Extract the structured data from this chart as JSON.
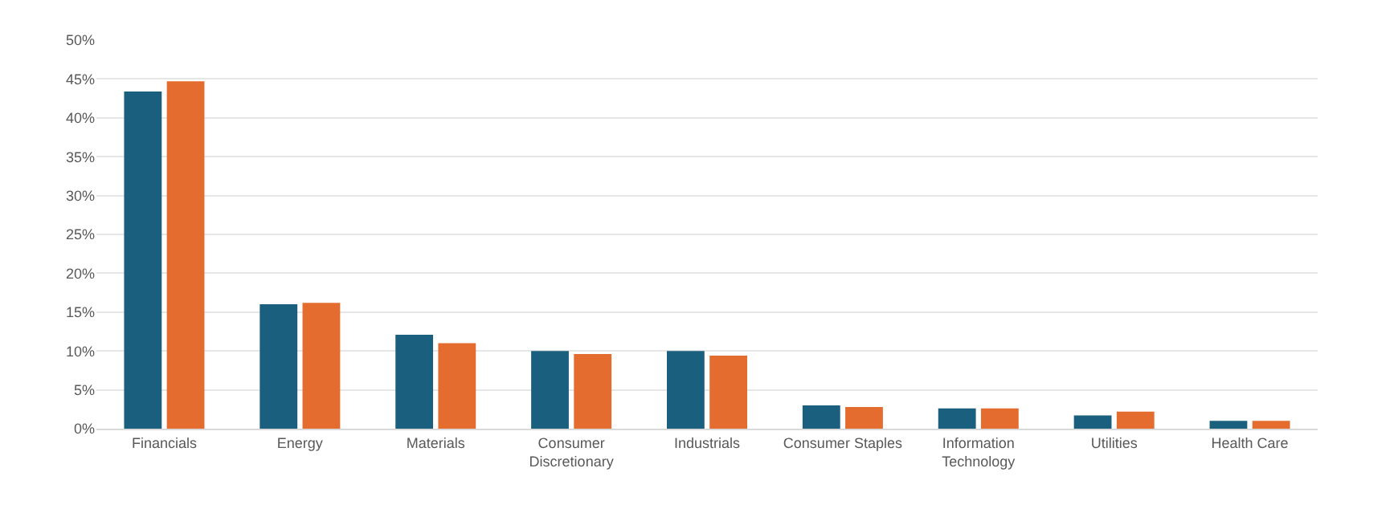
{
  "chart_data": {
    "type": "bar",
    "categories": [
      "Financials",
      "Energy",
      "Materials",
      "Consumer Discretionary",
      "Industrials",
      "Consumer Staples",
      "Information Technology",
      "Utilities",
      "Health Care"
    ],
    "series": [
      {
        "color": "#1b5f7e",
        "values": [
          43.4,
          16.0,
          12.1,
          10.0,
          10.0,
          3.0,
          2.6,
          1.7,
          1.0
        ]
      },
      {
        "color": "#e46c2e",
        "values": [
          44.7,
          16.2,
          11.0,
          9.6,
          9.4,
          2.8,
          2.6,
          2.2,
          1.0
        ]
      }
    ],
    "ylim": [
      0,
      50
    ],
    "yticks": [
      {
        "value": 0,
        "label": "0%"
      },
      {
        "value": 5,
        "label": "5%"
      },
      {
        "value": 10,
        "label": "10%"
      },
      {
        "value": 15,
        "label": "15%"
      },
      {
        "value": 20,
        "label": "20%"
      },
      {
        "value": 25,
        "label": "25%"
      },
      {
        "value": 30,
        "label": "30%"
      },
      {
        "value": 35,
        "label": "35%"
      },
      {
        "value": 40,
        "label": "40%"
      },
      {
        "value": 45,
        "label": "45%"
      },
      {
        "value": 50,
        "label": "50%"
      }
    ],
    "grid": "y"
  }
}
